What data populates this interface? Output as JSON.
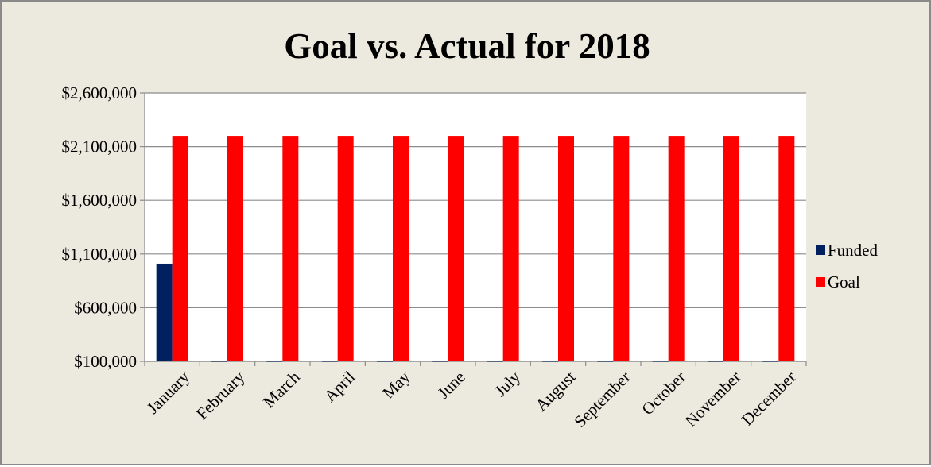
{
  "chart_data": {
    "type": "bar",
    "title": "Goal vs. Actual for 2018",
    "xlabel": "",
    "ylabel": "",
    "categories": [
      "January",
      "February",
      "March",
      "April",
      "May",
      "June",
      "July",
      "August",
      "September",
      "October",
      "November",
      "December"
    ],
    "series": [
      {
        "name": "Funded",
        "color": "#002060",
        "values": [
          1010000,
          100000,
          100000,
          100000,
          100000,
          100000,
          100000,
          100000,
          100000,
          100000,
          100000,
          100000
        ]
      },
      {
        "name": "Goal",
        "color": "#ff0000",
        "values": [
          2200000,
          2200000,
          2200000,
          2200000,
          2200000,
          2200000,
          2200000,
          2200000,
          2200000,
          2200000,
          2200000,
          2200000
        ]
      }
    ],
    "ylim": [
      100000,
      2600000
    ],
    "yticks": [
      100000,
      600000,
      1100000,
      1600000,
      2100000,
      2600000
    ],
    "ytick_labels": [
      "$100,000",
      "$600,000",
      "$1,100,000",
      "$1,600,000",
      "$2,100,000",
      "$2,600,000"
    ],
    "grid": true,
    "legend_position": "right",
    "plot_background": "#ffffff",
    "frame_background": "#ece9df"
  }
}
